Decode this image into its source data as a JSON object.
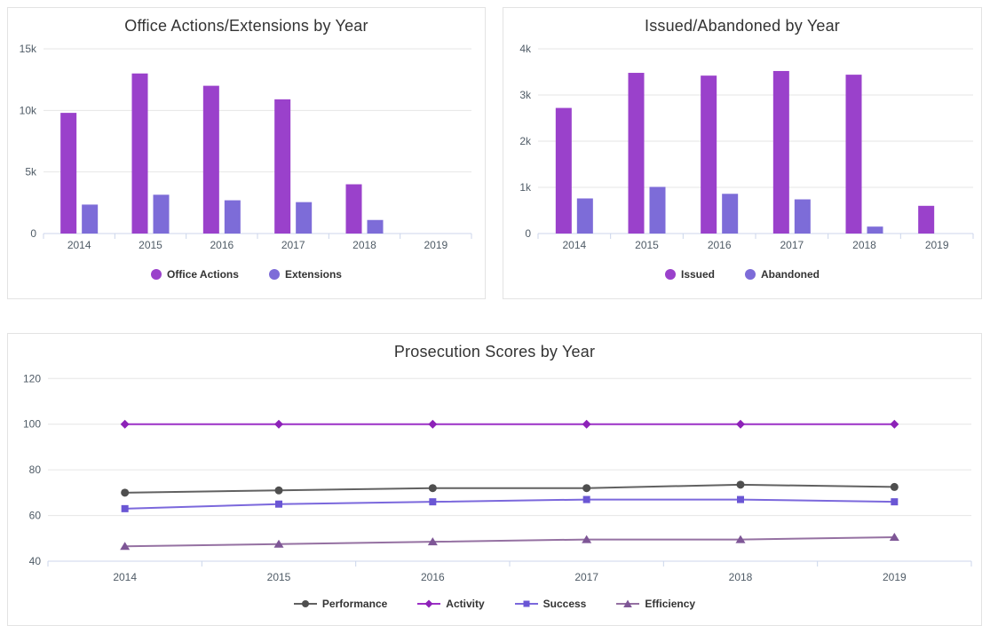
{
  "page": {
    "background_color": "#ffffff",
    "grid_color": "#e6e6e6",
    "axis_line_color": "#ccd6eb",
    "tick_label_color": "#4f5b66",
    "title_color": "#333333",
    "legend_text_color": "#333333"
  },
  "chart_data": [
    {
      "type": "bar",
      "title": "Office Actions/Extensions by Year",
      "xlabel": "",
      "ylabel": "",
      "categories": [
        "2014",
        "2015",
        "2016",
        "2017",
        "2018",
        "2019"
      ],
      "ylim": [
        0,
        15000
      ],
      "y_ticks": [
        {
          "v": 0,
          "label": "0"
        },
        {
          "v": 5000,
          "label": "5k"
        },
        {
          "v": 10000,
          "label": "10k"
        },
        {
          "v": 15000,
          "label": "15k"
        }
      ],
      "grid": true,
      "legend_position": "bottom",
      "series": [
        {
          "name": "Office Actions",
          "color": "#9a41cb",
          "values": [
            9800,
            13000,
            12000,
            10900,
            4000,
            0
          ]
        },
        {
          "name": "Extensions",
          "color": "#7d6cd8",
          "values": [
            2350,
            3150,
            2700,
            2550,
            1100,
            0
          ]
        }
      ]
    },
    {
      "type": "bar",
      "title": "Issued/Abandoned by Year",
      "xlabel": "",
      "ylabel": "",
      "categories": [
        "2014",
        "2015",
        "2016",
        "2017",
        "2018",
        "2019"
      ],
      "ylim": [
        0,
        4000
      ],
      "y_ticks": [
        {
          "v": 0,
          "label": "0"
        },
        {
          "v": 1000,
          "label": "1k"
        },
        {
          "v": 2000,
          "label": "2k"
        },
        {
          "v": 3000,
          "label": "3k"
        },
        {
          "v": 4000,
          "label": "4k"
        }
      ],
      "grid": true,
      "legend_position": "bottom",
      "series": [
        {
          "name": "Issued",
          "color": "#9a41cb",
          "values": [
            2720,
            3480,
            3420,
            3520,
            3440,
            600
          ]
        },
        {
          "name": "Abandoned",
          "color": "#7d6cd8",
          "values": [
            760,
            1010,
            860,
            740,
            150,
            0
          ]
        }
      ]
    },
    {
      "type": "line",
      "title": "Prosecution Scores by Year",
      "xlabel": "",
      "ylabel": "",
      "categories": [
        "2014",
        "2015",
        "2016",
        "2017",
        "2018",
        "2019"
      ],
      "ylim": [
        40,
        124
      ],
      "y_ticks": [
        {
          "v": 40,
          "label": "40"
        },
        {
          "v": 60,
          "label": "60"
        },
        {
          "v": 80,
          "label": "80"
        },
        {
          "v": 100,
          "label": "100"
        },
        {
          "v": 120,
          "label": "120"
        }
      ],
      "grid": true,
      "legend_position": "bottom",
      "series": [
        {
          "name": "Performance",
          "color": "#616161",
          "marker_color": "#4f4f4f",
          "marker": "circle",
          "values": [
            70,
            71,
            72,
            72,
            73.5,
            72.5
          ]
        },
        {
          "name": "Activity",
          "color": "#9c30c6",
          "marker_color": "#8d22b8",
          "marker": "diamond",
          "values": [
            100,
            100,
            100,
            100,
            100,
            100
          ]
        },
        {
          "name": "Success",
          "color": "#7b68dc",
          "marker_color": "#6a56d4",
          "marker": "square",
          "values": [
            63,
            65,
            66,
            67,
            67,
            66
          ]
        },
        {
          "name": "Efficiency",
          "color": "#9571a2",
          "marker_color": "#7e5696",
          "marker": "triangle",
          "values": [
            46.5,
            47.5,
            48.5,
            49.5,
            49.5,
            50.5
          ]
        }
      ]
    }
  ]
}
